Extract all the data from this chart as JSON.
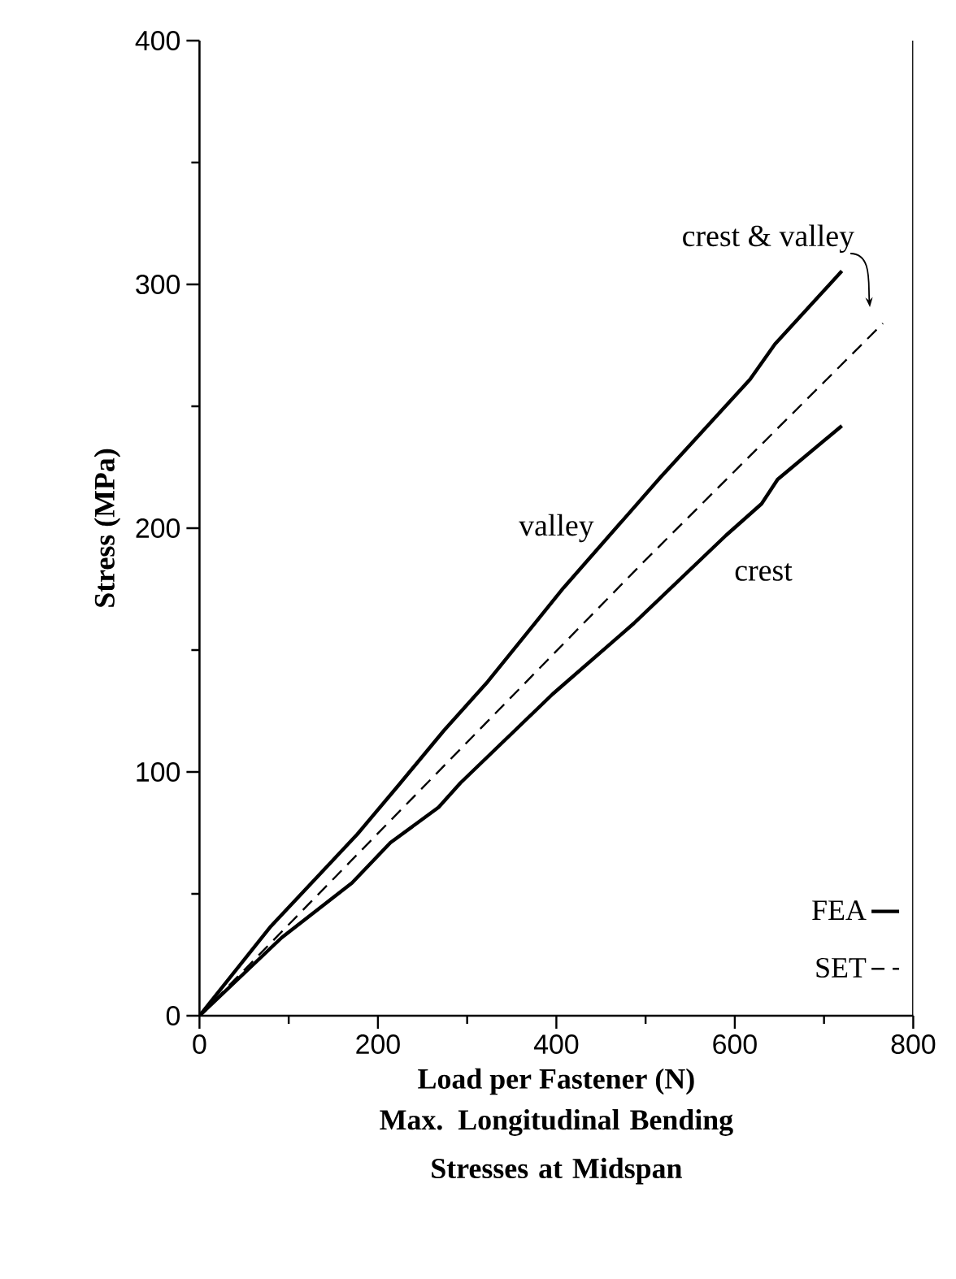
{
  "chart_data": {
    "type": "line",
    "title": "Max. Longitudinal Bending Stresses at Midspan",
    "xlabel": "Load per Fastener (N)",
    "ylabel": "Stress (MPa)",
    "xlim": [
      0,
      800
    ],
    "ylim": [
      0,
      400
    ],
    "xticks": [
      0,
      200,
      400,
      600,
      800
    ],
    "yticks": [
      0,
      100,
      200,
      300,
      400
    ],
    "legend": "bottom right",
    "marker": "none",
    "series": [
      {
        "name": "FEA",
        "color": "#000000",
        "line_style": "solid",
        "x": [
          0,
          80,
          177,
          223,
          274,
          323,
          408,
          517,
          617,
          645,
          720
        ],
        "values": [
          0,
          36.7,
          74.5,
          94.5,
          117,
          137,
          175.5,
          221,
          261,
          275.5,
          305.5
        ]
      },
      {
        "color": "#000000",
        "line_style": "solid",
        "x": [
          0,
          92,
          171,
          214,
          268,
          292.5,
          396,
          487,
          590,
          630,
          648,
          720
        ],
        "values": [
          0,
          32,
          54.5,
          71,
          85.5,
          95.5,
          132,
          161,
          197,
          210,
          220,
          242
        ]
      },
      {
        "name": "SET",
        "color": "#000000",
        "line_style": "dashed",
        "x": [
          0,
          496,
          766
        ],
        "values": [
          0,
          185.5,
          284
        ]
      }
    ],
    "annotations": [
      "valley",
      "crest",
      {
        "text": "crest & valley",
        "x": 766,
        "y": 284
      }
    ]
  }
}
